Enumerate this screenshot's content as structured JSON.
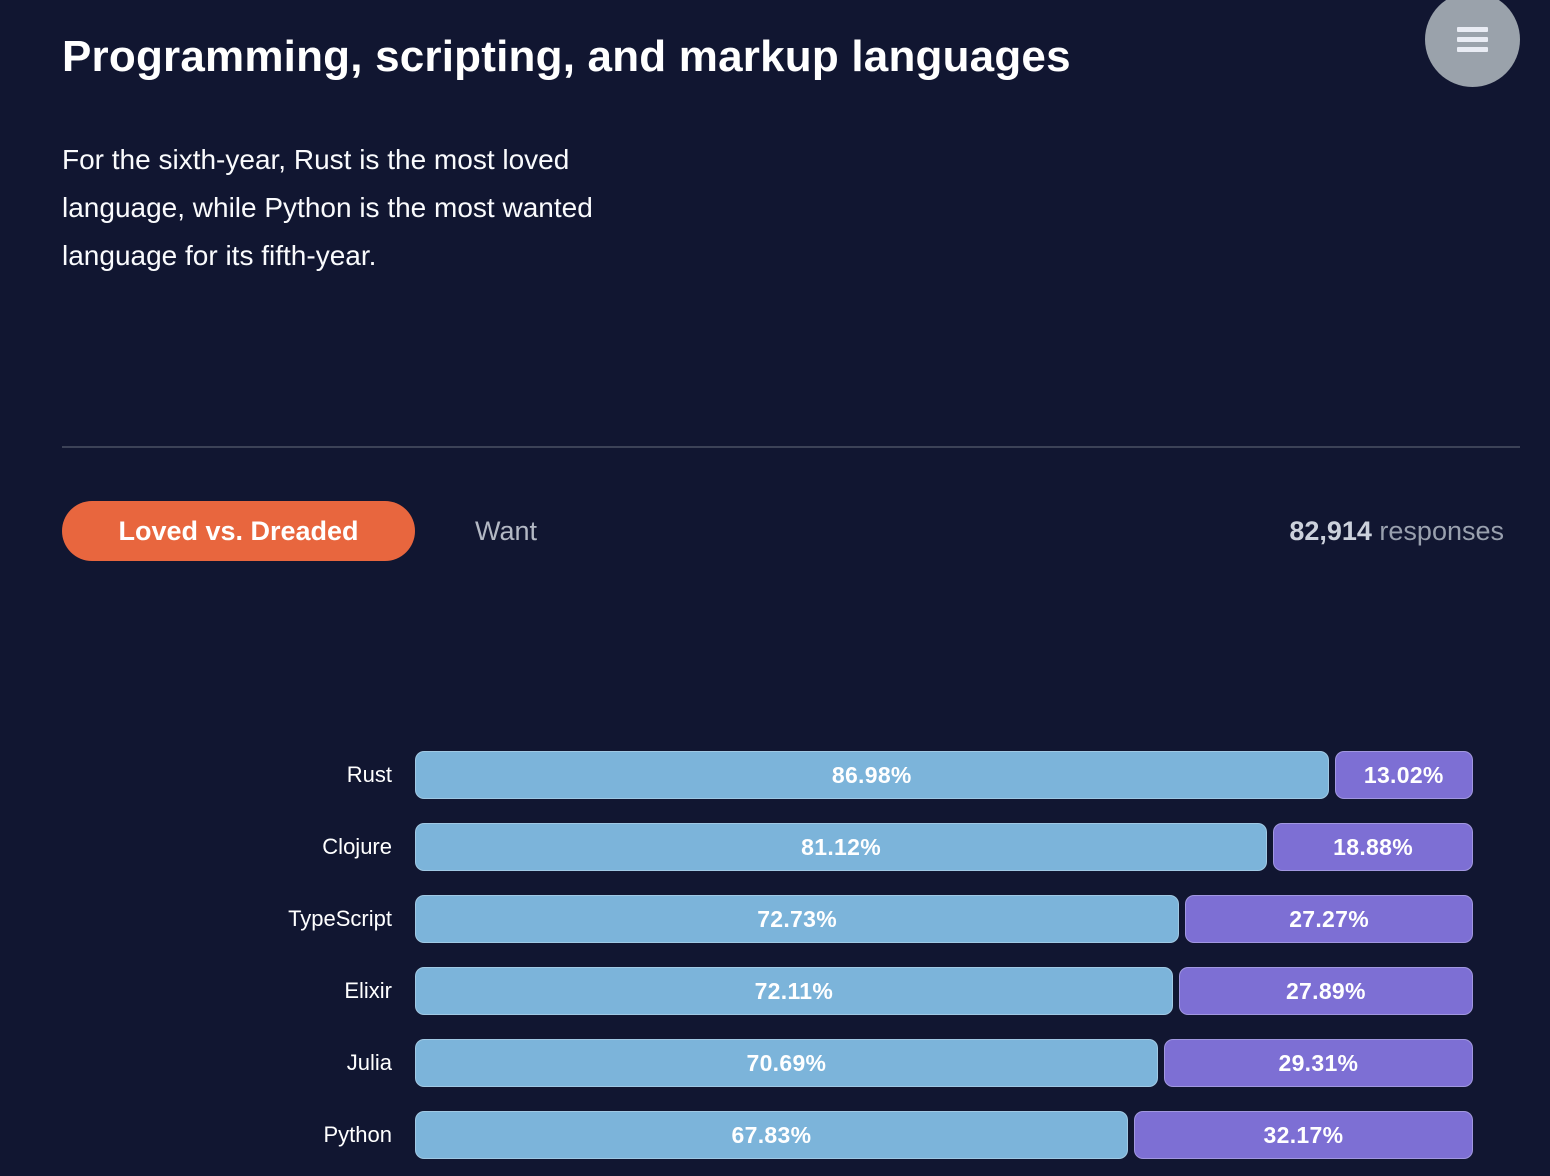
{
  "header": {
    "title": "Programming, scripting, and markup languages"
  },
  "icons": {
    "menu": "hamburger-icon"
  },
  "intro": {
    "full_text": "For the sixth-year, Rust is the most loved language, while Python is the most wanted language for its fifth-year.",
    "lines": [
      "For the sixth-year, Rust is the most loved",
      "language, while Python is the most wanted",
      "language for its fifth-year."
    ]
  },
  "tabs": {
    "loved_vs_dreaded": "Loved vs. Dreaded",
    "want": "Want",
    "active": "Loved vs. Dreaded"
  },
  "responses": {
    "count": "82,914",
    "label": "responses"
  },
  "colors": {
    "background": "#111631",
    "accent_orange": "#e8663e",
    "loved_blue": "#7cb4da",
    "dreaded_purple": "#7d6fd4",
    "divider": "#3c4257",
    "menu_circle": "#9aa2ab"
  },
  "chart_data": {
    "type": "bar",
    "orientation": "horizontal",
    "stacked": true,
    "grid": false,
    "legend": "none",
    "value_format": "percent",
    "xlim": [
      0,
      100
    ],
    "categories": [
      "Rust",
      "Clojure",
      "TypeScript",
      "Elixir",
      "Julia",
      "Python"
    ],
    "series": [
      {
        "name": "Loved",
        "color": "#7cb4da",
        "values": [
          86.98,
          81.12,
          72.73,
          72.11,
          70.69,
          67.83
        ]
      },
      {
        "name": "Dreaded",
        "color": "#7d6fd4",
        "values": [
          13.02,
          18.88,
          27.27,
          27.89,
          29.31,
          32.17
        ]
      }
    ]
  }
}
